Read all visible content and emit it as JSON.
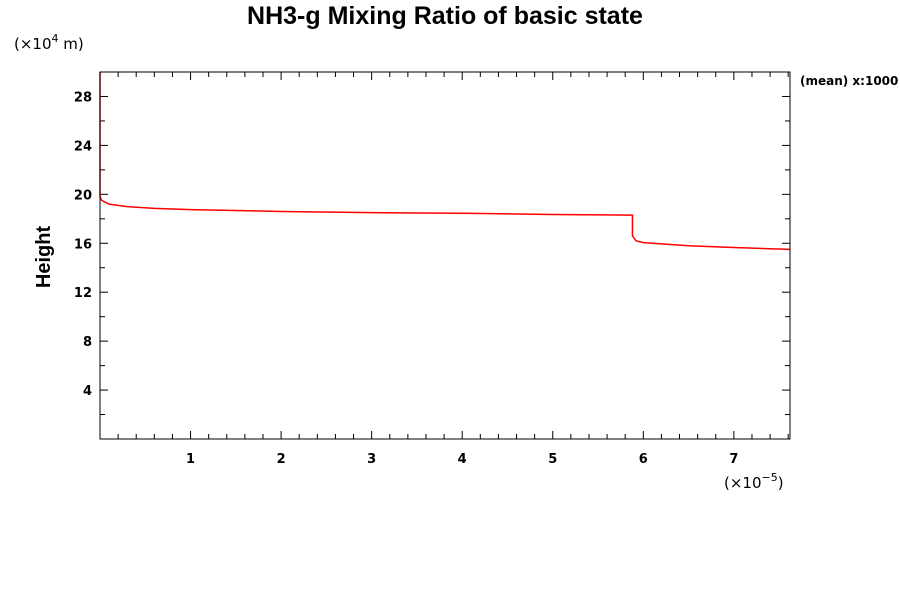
{
  "chart_data": {
    "type": "line",
    "title": "NH3-g Mixing Ratio of basic state",
    "xlabel": "",
    "ylabel": "Height",
    "x_scale_label": {
      "prefix": "(×10",
      "exponent": "−5",
      "suffix": ")"
    },
    "y_scale_label": {
      "prefix": "(×10",
      "exponent": "4",
      "suffix": " m)"
    },
    "note": "(mean) x:1000",
    "xlim": [
      0,
      7.62
    ],
    "ylim": [
      0,
      30
    ],
    "x_ticks": [
      1,
      2,
      3,
      4,
      5,
      6,
      7
    ],
    "y_ticks": [
      4,
      8,
      12,
      16,
      20,
      24,
      28
    ],
    "series": [
      {
        "color": "#ff0000",
        "points": [
          [
            0.0,
            30.0
          ],
          [
            0.0,
            19.8
          ],
          [
            0.02,
            19.5
          ],
          [
            0.1,
            19.2
          ],
          [
            0.3,
            19.0
          ],
          [
            0.6,
            18.85
          ],
          [
            1.0,
            18.75
          ],
          [
            2.0,
            18.6
          ],
          [
            3.0,
            18.5
          ],
          [
            4.0,
            18.45
          ],
          [
            5.0,
            18.35
          ],
          [
            5.88,
            18.3
          ],
          [
            5.88,
            16.6
          ],
          [
            5.92,
            16.2
          ],
          [
            6.0,
            16.05
          ],
          [
            6.5,
            15.8
          ],
          [
            7.0,
            15.65
          ],
          [
            7.62,
            15.5
          ]
        ]
      }
    ]
  }
}
